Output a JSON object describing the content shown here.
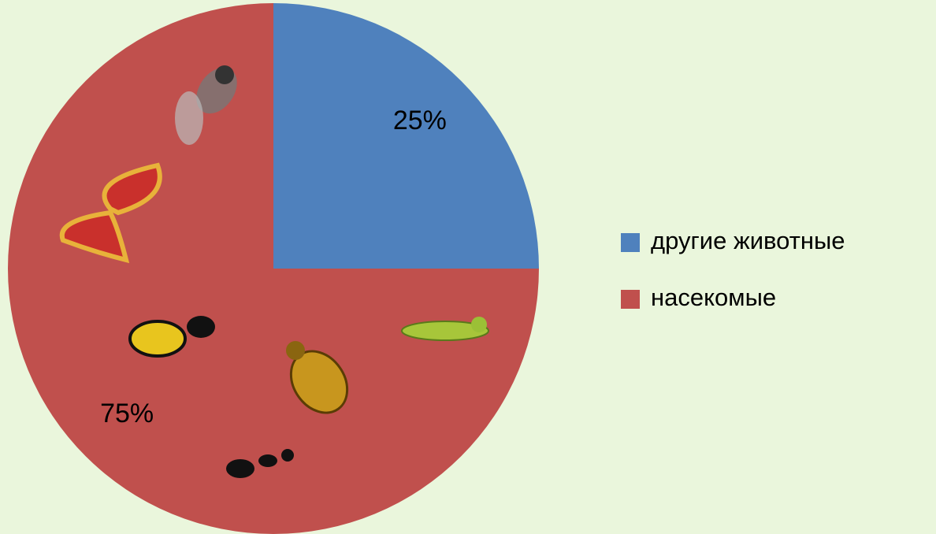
{
  "chart_data": {
    "type": "pie",
    "categories": [
      "другие животные",
      "насекомые"
    ],
    "values": [
      25,
      75
    ],
    "value_labels": [
      "25%",
      "75%"
    ],
    "colors": [
      "#4f81bd",
      "#c0504d"
    ],
    "legend": "right"
  }
}
